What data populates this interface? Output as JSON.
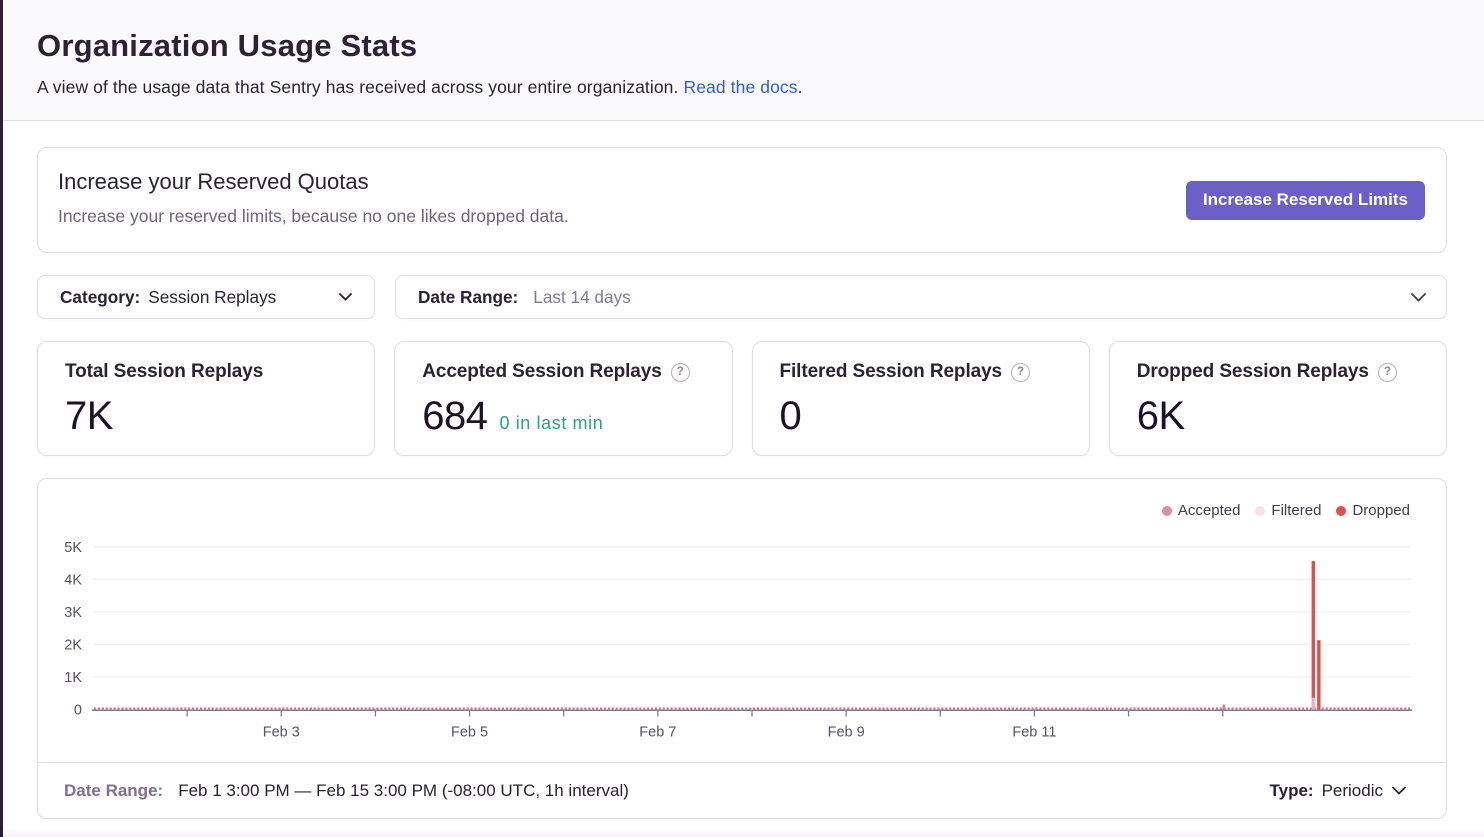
{
  "page": {
    "title": "Organization Usage Stats",
    "subtitle": "A view of the usage data that Sentry has received across your entire organization. ",
    "subtitle_link": "Read the docs",
    "subtitle_suffix": "."
  },
  "quota_banner": {
    "title": "Increase your Reserved Quotas",
    "description": "Increase your reserved limits, because no one likes dropped data.",
    "button_label": "Increase Reserved Limits"
  },
  "filters": {
    "category": {
      "label": "Category:",
      "value": "Session Replays"
    },
    "date_range": {
      "label": "Date Range:",
      "value": "Last 14 days"
    }
  },
  "stat_cards": [
    {
      "label": "Total Session Replays",
      "value": "7K",
      "sub": "",
      "has_help": false
    },
    {
      "label": "Accepted Session Replays",
      "value": "684",
      "sub": "0 in last min",
      "has_help": true
    },
    {
      "label": "Filtered Session Replays",
      "value": "0",
      "sub": "",
      "has_help": true
    },
    {
      "label": "Dropped Session Replays",
      "value": "6K",
      "sub": "",
      "has_help": true
    }
  ],
  "chart_footer": {
    "date_range_label": "Date Range:",
    "date_range_value": "Feb 1 3:00 PM — Feb 15 3:00 PM (-08:00 UTC, 1h interval)",
    "type_label": "Type:",
    "type_value": "Periodic"
  },
  "chart_data": {
    "type": "bar",
    "x_start": "Feb 1 3:00 PM",
    "x_end": "Feb 15 3:00 PM",
    "interval": "1h",
    "days_shown": 14,
    "x_tick_labels": [
      {
        "label": "Feb 3",
        "day": 2
      },
      {
        "label": "Feb 5",
        "day": 4
      },
      {
        "label": "Feb 7",
        "day": 6
      },
      {
        "label": "Feb 9",
        "day": 8
      },
      {
        "label": "Feb 11",
        "day": 10
      }
    ],
    "y_ticks": [
      {
        "label": "0",
        "value": 0
      },
      {
        "label": "1K",
        "value": 1000
      },
      {
        "label": "2K",
        "value": 2000
      },
      {
        "label": "3K",
        "value": 3000
      },
      {
        "label": "4K",
        "value": 4000
      },
      {
        "label": "5K",
        "value": 5000
      }
    ],
    "ylim": [
      0,
      5000
    ],
    "legend": [
      {
        "name": "Accepted",
        "color": "#DA91A7"
      },
      {
        "name": "Filtered",
        "color": "#F8E2EA"
      },
      {
        "name": "Dropped",
        "color": "#E0504B"
      }
    ],
    "series": {
      "accepted": {
        "name": "Accepted",
        "color": "#D57D9B",
        "color_light": "#E2B3CA",
        "hourly_baseline_value": 2,
        "spikes": [
          {
            "day": 12.01,
            "value": 150
          },
          {
            "day": 12.962,
            "value": 360
          }
        ]
      },
      "filtered": {
        "name": "Filtered",
        "color": "#F8E2EA",
        "total": 0,
        "spikes": []
      },
      "dropped": {
        "name": "Dropped",
        "color": "#E0504B",
        "spikes": [
          {
            "day": 12.962,
            "value": 4200,
            "stack_on_accepted": true
          },
          {
            "day": 13.021,
            "value": 2130,
            "stack_on_accepted": false
          }
        ]
      }
    },
    "axis_color": "#847D92",
    "grid_color": "#F2F0F4",
    "label_color": "#5B5167"
  }
}
